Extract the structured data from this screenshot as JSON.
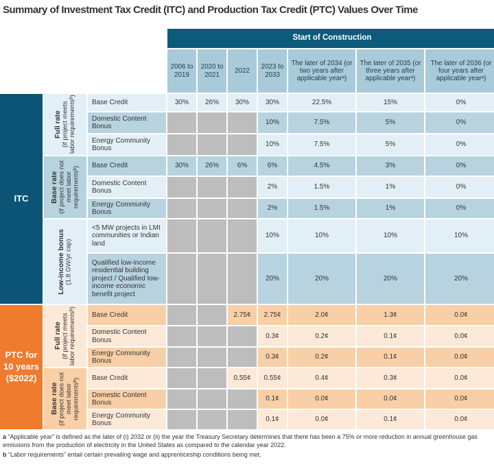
{
  "title": "Summary of Investment Tax Credit (ITC) and Production Tax Credit (PTC) Values Over Time",
  "header": {
    "span_label": "Start of Construction",
    "columns": [
      "2006 to 2019",
      "2020 to 2021",
      "2022",
      "2023 to 2033",
      "The later of 2034 (or two years after applicable yearᵃ)",
      "The later of 2035 (or three years after applicable yearᵃ)",
      "The later of 2036 (or four years after applicable yearᵃ)"
    ]
  },
  "colors": {
    "header": "#0d5a7a",
    "year_header": "#a8cad9",
    "itc": "#0b5475",
    "itc_light": "#e2eff6",
    "itc_mid": "#b7d3df",
    "ptc": "#ee7b2e",
    "ptc_light": "#fde9d8",
    "ptc_mid": "#f8cfa6",
    "na": "#bdbdbd"
  },
  "sections": [
    {
      "label": "ITC",
      "theme": "itc",
      "groups": [
        {
          "title": "Full rate",
          "subtitle": "(if project meets labor requirementsᵇ)",
          "rows": [
            {
              "label": "Base Credit",
              "values": [
                "30%",
                "26%",
                "30%",
                "30%",
                "22.5%",
                "15%",
                "0%"
              ]
            },
            {
              "label": "Domestic Content Bonus",
              "values": [
                null,
                null,
                null,
                "10%",
                "7.5%",
                "5%",
                "0%"
              ]
            },
            {
              "label": "Energy Community Bonus",
              "values": [
                null,
                null,
                null,
                "10%",
                "7.5%",
                "5%",
                "0%"
              ]
            }
          ]
        },
        {
          "title": "Base rate",
          "subtitle": "(if project does not meet labor requirementsᵇ)",
          "rows": [
            {
              "label": "Base Credit",
              "values": [
                "30%",
                "26%",
                "6%",
                "6%",
                "4.5%",
                "3%",
                "0%"
              ]
            },
            {
              "label": "Domestic Content Bonus",
              "values": [
                null,
                null,
                null,
                "2%",
                "1.5%",
                "1%",
                "0%"
              ]
            },
            {
              "label": "Energy Community Bonus",
              "values": [
                null,
                null,
                null,
                "2%",
                "1.5%",
                "1%",
                "0%"
              ]
            }
          ]
        },
        {
          "title": "Low-income bonus",
          "subtitle": "(1.8 GW/yr cap)",
          "rows": [
            {
              "label": "<5 MW projects in LMI communities or Indian land",
              "values": [
                null,
                null,
                null,
                "10%",
                "10%",
                "10%",
                "10%"
              ]
            },
            {
              "label": "Qualified low-income residential building project / Qualified low-income economic benefit project",
              "values": [
                null,
                null,
                null,
                "20%",
                "20%",
                "20%",
                "20%"
              ]
            }
          ]
        }
      ]
    },
    {
      "label": "PTC for 10 years ($2022)",
      "theme": "ptc",
      "groups": [
        {
          "title": "Full rate",
          "subtitle": "(if project meets labor requirementsᵇ)",
          "rows": [
            {
              "label": "Base Credit",
              "values": [
                null,
                null,
                "2.75¢",
                "2.75¢",
                "2.0¢",
                "1.3¢",
                "0.0¢"
              ]
            },
            {
              "label": "Domestic Content Bonus",
              "values": [
                null,
                null,
                null,
                "0.3¢",
                "0.2¢",
                "0.1¢",
                "0.0¢"
              ]
            },
            {
              "label": "Energy Community Bonus",
              "values": [
                null,
                null,
                null,
                "0.3¢",
                "0.2¢",
                "0.1¢",
                "0.0¢"
              ]
            }
          ]
        },
        {
          "title": "Base rate",
          "subtitle": "(if project does not meet labor requirementsᵇ)",
          "rows": [
            {
              "label": "Base Credit",
              "values": [
                null,
                null,
                "0.55¢",
                "0.55¢",
                "0.4¢",
                "0.3¢",
                "0.0¢"
              ]
            },
            {
              "label": "Domestic Content Bonus",
              "values": [
                null,
                null,
                null,
                "0.1¢",
                "0.0¢",
                "0.0¢",
                "0.0¢"
              ]
            },
            {
              "label": "Energy Community Bonus",
              "values": [
                null,
                null,
                null,
                "0.1¢",
                "0.0¢",
                "0.1¢",
                "0.0¢"
              ]
            }
          ]
        }
      ]
    }
  ],
  "footnotes": [
    {
      "mark": "a",
      "text": "“Applicable year” is defined as the later of (i) 2032 or (ii) the year the Treasury Secretary determines that there has been a 75% or more reduction in annual greenhouse gas emissions from the production of electricity in the United States as compared to the calendar year 2022."
    },
    {
      "mark": "b",
      "text": "“Labor requirements” entail certain prevailing wage and apprenticeship conditions being met."
    }
  ]
}
